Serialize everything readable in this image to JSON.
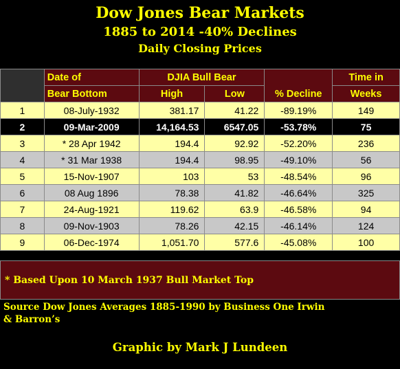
{
  "header": {
    "title": "Dow Jones Bear Markets",
    "subtitle": "1885 to 2014 -40% Declines",
    "subtitle2": "Daily Closing Prices"
  },
  "table": {
    "headers": {
      "date_line1": "Date of",
      "date_line2": "Bear Bottom",
      "djia": "DJIA Bull Bear",
      "high": "High",
      "low": "Low",
      "decline": "% Decline",
      "time_line1": "Time in",
      "time_line2": "Weeks"
    },
    "rows": [
      {
        "n": "1",
        "date": "08-July-1932",
        "high": "381.17",
        "low": "41.22",
        "decline": "-89.19%",
        "weeks": "149"
      },
      {
        "n": "2",
        "date": "09-Mar-2009",
        "high": "14,164.53",
        "low": "6547.05",
        "decline": "-53.78%",
        "weeks": "75"
      },
      {
        "n": "3",
        "date": "* 28 Apr 1942",
        "high": "194.4",
        "low": "92.92",
        "decline": "-52.20%",
        "weeks": "236"
      },
      {
        "n": "4",
        "date": "* 31 Mar 1938",
        "high": "194.4",
        "low": "98.95",
        "decline": "-49.10%",
        "weeks": "56"
      },
      {
        "n": "5",
        "date": "15-Nov-1907",
        "high": "103",
        "low": "53",
        "decline": "-48.54%",
        "weeks": "96"
      },
      {
        "n": "6",
        "date": "08 Aug 1896",
        "high": "78.38",
        "low": "41.82",
        "decline": "-46.64%",
        "weeks": "325"
      },
      {
        "n": "7",
        "date": "24-Aug-1921",
        "high": "119.62",
        "low": "63.9",
        "decline": "-46.58%",
        "weeks": "94"
      },
      {
        "n": "8",
        "date": "09-Nov-1903",
        "high": "78.26",
        "low": "42.15",
        "decline": "-46.14%",
        "weeks": "124"
      },
      {
        "n": "9",
        "date": "06-Dec-1974",
        "high": "1,051.70",
        "low": "577.6",
        "decline": "-45.08%",
        "weeks": "100"
      }
    ]
  },
  "footnote": "* Based Upon 10 March 1937 Bull Market Top",
  "source_line1": "Source Dow Jones Averages 1885-1990 by Business One Irwin",
  "source_line2": "& Barron’s",
  "credit": "Graphic by Mark J Lundeen",
  "colors": {
    "title": "#ffff00",
    "header_bg": "#5c0a10",
    "row_yellow": "#ffffa6",
    "row_gray": "#c8c8c8"
  }
}
